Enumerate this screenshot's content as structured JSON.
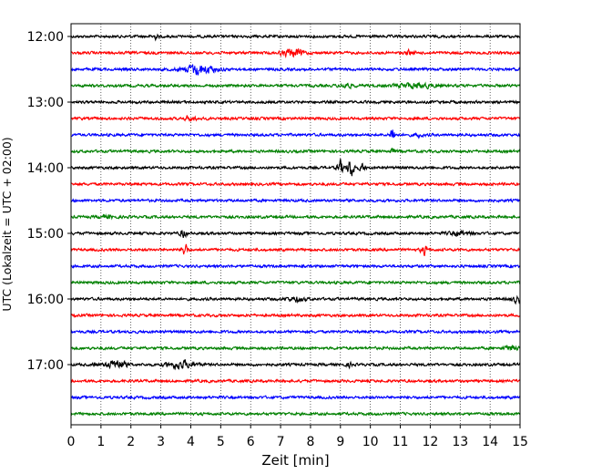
{
  "chart_data": {
    "type": "line",
    "title": "",
    "xlabel": "Zeit  [min]",
    "ylabel": "UTC (Lokalzeit = UTC + 02:00)",
    "xlim": [
      0,
      15
    ],
    "x_ticks": [
      "0",
      "1",
      "2",
      "3",
      "4",
      "5",
      "6",
      "7",
      "8",
      "9",
      "10",
      "11",
      "12",
      "13",
      "14",
      "15"
    ],
    "y_ticks": [
      "12:00",
      "13:00",
      "14:00",
      "15:00",
      "16:00",
      "17:00"
    ],
    "grid": "vertical dotted",
    "trace_minutes": 15,
    "colors": [
      "#000000",
      "#ff0000",
      "#0000ff",
      "#008000"
    ],
    "traces": [
      {
        "start": "12:00"
      },
      {
        "start": "12:15"
      },
      {
        "start": "12:30"
      },
      {
        "start": "12:45"
      },
      {
        "start": "13:00"
      },
      {
        "start": "13:15"
      },
      {
        "start": "13:30"
      },
      {
        "start": "13:45"
      },
      {
        "start": "14:00"
      },
      {
        "start": "14:15"
      },
      {
        "start": "14:30"
      },
      {
        "start": "14:45"
      },
      {
        "start": "15:00"
      },
      {
        "start": "15:15"
      },
      {
        "start": "15:30"
      },
      {
        "start": "15:45"
      },
      {
        "start": "16:00"
      },
      {
        "start": "16:15"
      },
      {
        "start": "16:30"
      },
      {
        "start": "16:45"
      },
      {
        "start": "17:00"
      },
      {
        "start": "17:15"
      },
      {
        "start": "17:30"
      },
      {
        "start": "17:45"
      }
    ],
    "events": [
      {
        "trace": 0,
        "minute": 2.8,
        "amp": 0.6,
        "dur": 0.1
      },
      {
        "trace": 1,
        "minute": 7.4,
        "amp": 0.9,
        "dur": 0.35
      },
      {
        "trace": 1,
        "minute": 11.3,
        "amp": 0.5,
        "dur": 0.15
      },
      {
        "trace": 2,
        "minute": 4.3,
        "amp": 1.2,
        "dur": 0.5
      },
      {
        "trace": 3,
        "minute": 9.2,
        "amp": 0.5,
        "dur": 0.2
      },
      {
        "trace": 3,
        "minute": 11.5,
        "amp": 0.55,
        "dur": 0.6
      },
      {
        "trace": 5,
        "minute": 4.0,
        "amp": 0.5,
        "dur": 0.2
      },
      {
        "trace": 6,
        "minute": 10.75,
        "amp": 2.0,
        "dur": 0.08
      },
      {
        "trace": 6,
        "minute": 11.6,
        "amp": 0.4,
        "dur": 0.15
      },
      {
        "trace": 7,
        "minute": 10.75,
        "amp": 0.6,
        "dur": 0.1
      },
      {
        "trace": 8,
        "minute": 9.0,
        "amp": 1.6,
        "dur": 0.1
      },
      {
        "trace": 8,
        "minute": 9.35,
        "amp": 2.0,
        "dur": 0.12
      },
      {
        "trace": 8,
        "minute": 9.75,
        "amp": 0.8,
        "dur": 0.1
      },
      {
        "trace": 11,
        "minute": 1.2,
        "amp": 0.4,
        "dur": 0.2
      },
      {
        "trace": 12,
        "minute": 3.75,
        "amp": 1.0,
        "dur": 0.1
      },
      {
        "trace": 12,
        "minute": 13.0,
        "amp": 0.5,
        "dur": 0.35
      },
      {
        "trace": 13,
        "minute": 3.8,
        "amp": 1.6,
        "dur": 0.08
      },
      {
        "trace": 13,
        "minute": 11.8,
        "amp": 0.9,
        "dur": 0.12
      },
      {
        "trace": 16,
        "minute": 7.5,
        "amp": 0.5,
        "dur": 0.3
      },
      {
        "trace": 16,
        "minute": 14.9,
        "amp": 0.6,
        "dur": 0.2
      },
      {
        "trace": 19,
        "minute": 14.7,
        "amp": 0.5,
        "dur": 0.25
      },
      {
        "trace": 20,
        "minute": 0.8,
        "amp": 0.4,
        "dur": 0.1
      },
      {
        "trace": 20,
        "minute": 1.5,
        "amp": 1.1,
        "dur": 0.3
      },
      {
        "trace": 20,
        "minute": 3.7,
        "amp": 0.8,
        "dur": 0.45
      },
      {
        "trace": 20,
        "minute": 9.3,
        "amp": 0.4,
        "dur": 0.1
      }
    ]
  }
}
